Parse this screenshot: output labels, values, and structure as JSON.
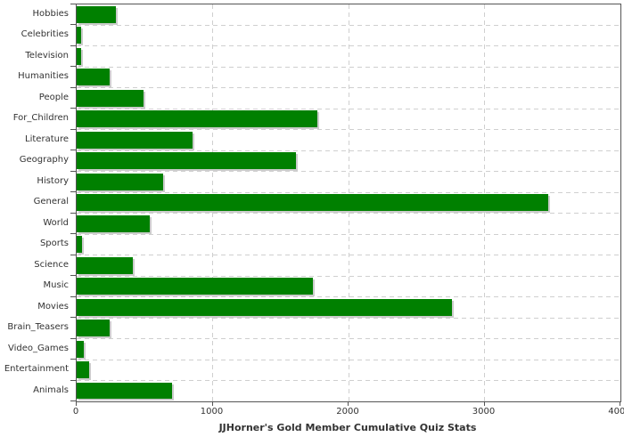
{
  "chart_data": {
    "type": "bar",
    "orientation": "horizontal",
    "title": "JJHorner's Gold Member Cumulative Quiz Stats",
    "categories": [
      "Hobbies",
      "Celebrities",
      "Television",
      "Humanities",
      "People",
      "For_Children",
      "Literature",
      "Geography",
      "History",
      "General",
      "World",
      "Sports",
      "Science",
      "Music",
      "Movies",
      "Brain_Teasers",
      "Video_Games",
      "Entertainment",
      "Animals"
    ],
    "values": [
      290,
      30,
      30,
      240,
      490,
      1770,
      855,
      1615,
      635,
      3470,
      535,
      40,
      410,
      1735,
      2760,
      245,
      50,
      95,
      700
    ],
    "xlabel": "",
    "ylabel": "",
    "xlim": [
      0,
      4000
    ],
    "x_ticks": [
      0,
      1000,
      2000,
      3000,
      4000
    ],
    "x_tick_labels": [
      "0",
      "1000",
      "2000",
      "3000",
      "4000"
    ],
    "grid": "dashed major gridlines, vertical at every 1000 and horizontal at category boundaries",
    "legend": "none",
    "colors": {
      "bar": "#008000",
      "bar_shadow": "#cccccc",
      "gridline": "#cfcfcf",
      "axis": "#555555",
      "text": "#333333",
      "background": "#ffffff"
    }
  }
}
